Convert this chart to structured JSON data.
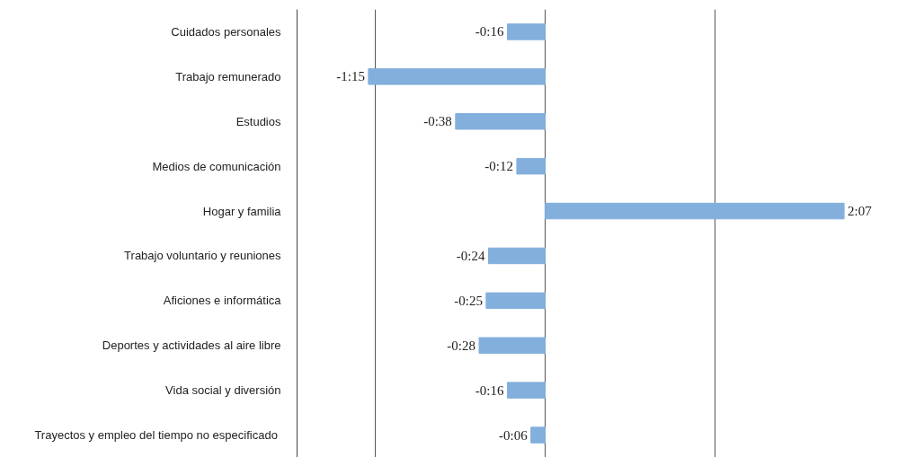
{
  "chart_data": {
    "type": "bar",
    "orientation": "horizontal",
    "categories": [
      "Cuidados personales",
      "Trabajo remunerado",
      "Estudios",
      "Medios de comunicación",
      "Hogar y familia",
      "Trabajo voluntario y reuniones",
      "Aficiones e informática",
      "Deportes y actividades al aire libre",
      "Vida social y diversión",
      "Trayectos y empleo del tiempo no  especificado"
    ],
    "values": [
      -16,
      -75,
      -38,
      -12,
      127,
      -24,
      -25,
      -28,
      -16,
      -6
    ],
    "value_labels": [
      "-0:16",
      "-1:15",
      "-0:38",
      "-0:12",
      "2:07",
      "-0:24",
      "-0:25",
      "-0:28",
      "-0:16",
      "-0:06"
    ],
    "color": "#83afdd",
    "xticks": [
      {
        "value": -72,
        "label": null
      },
      {
        "value": 0,
        "label": null
      },
      {
        "value": 72,
        "label": null
      }
    ],
    "grid": "x",
    "tick_labels": "y"
  }
}
